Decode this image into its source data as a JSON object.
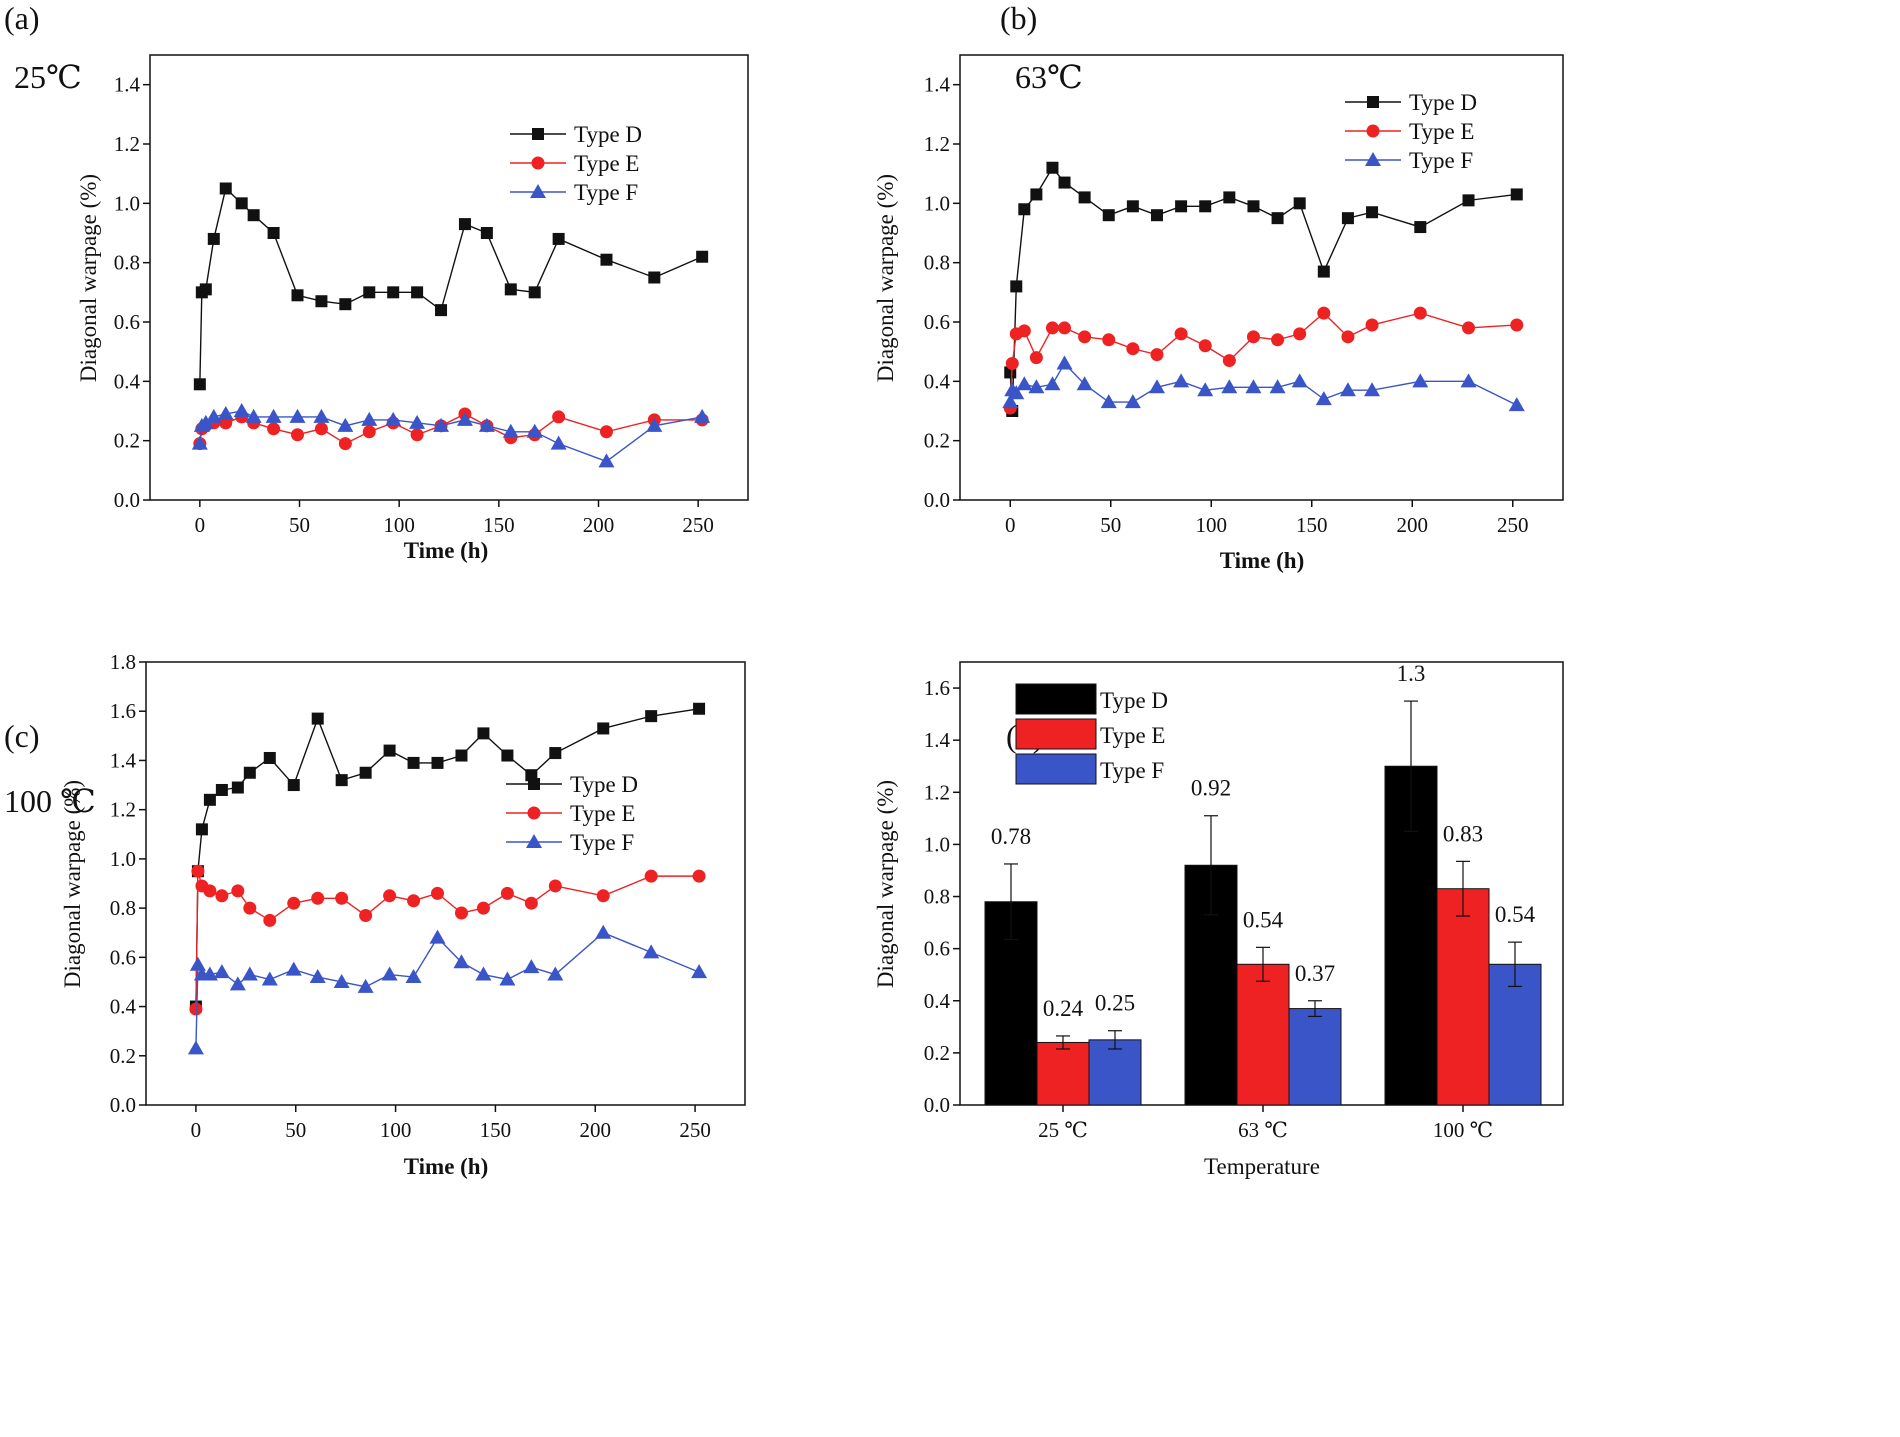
{
  "chart_data": [
    {
      "type": "line",
      "panel_label": "(a)",
      "temperature_label": "25℃",
      "xlabel": "Time (h)",
      "ylabel": "Diagonal warpage (%)",
      "xlim": [
        -25,
        275
      ],
      "ylim": [
        0,
        1.5
      ],
      "xticks": [
        0,
        50,
        100,
        150,
        200,
        250
      ],
      "yticks": [
        0.0,
        0.2,
        0.4,
        0.6,
        0.8,
        1.0,
        1.2,
        1.4
      ],
      "ytick_labels": [
        "0.0",
        "0.2",
        "0.4",
        "0.6",
        "0.8",
        "1.0",
        "1.2",
        "1.4"
      ],
      "legend_position": "top-right",
      "series": [
        {
          "name": "Type D",
          "color": "#111111",
          "marker": "square",
          "x": [
            0,
            1,
            3,
            7,
            13,
            21,
            27,
            37,
            49,
            61,
            73,
            85,
            97,
            109,
            121,
            133,
            144,
            156,
            168,
            180,
            204,
            228,
            252
          ],
          "y": [
            0.39,
            0.7,
            0.71,
            0.88,
            1.05,
            1.0,
            0.96,
            0.9,
            0.69,
            0.67,
            0.66,
            0.7,
            0.7,
            0.7,
            0.64,
            0.93,
            0.9,
            0.71,
            0.7,
            0.88,
            0.81,
            0.75,
            0.82
          ]
        },
        {
          "name": "Type E",
          "color": "#ee2222",
          "marker": "circle",
          "x": [
            0,
            1,
            3,
            7,
            13,
            21,
            27,
            37,
            49,
            61,
            73,
            85,
            97,
            109,
            121,
            133,
            144,
            156,
            168,
            180,
            204,
            228,
            252
          ],
          "y": [
            0.19,
            0.24,
            0.25,
            0.26,
            0.26,
            0.28,
            0.26,
            0.24,
            0.22,
            0.24,
            0.19,
            0.23,
            0.26,
            0.22,
            0.25,
            0.29,
            0.25,
            0.21,
            0.22,
            0.28,
            0.23,
            0.27,
            0.27
          ]
        },
        {
          "name": "Type F",
          "color": "#3a55c8",
          "marker": "triangle",
          "x": [
            0,
            1,
            3,
            7,
            13,
            21,
            27,
            37,
            49,
            61,
            73,
            85,
            97,
            109,
            121,
            133,
            144,
            156,
            168,
            180,
            204,
            228,
            252
          ],
          "y": [
            0.19,
            0.25,
            0.26,
            0.28,
            0.29,
            0.3,
            0.28,
            0.28,
            0.28,
            0.28,
            0.25,
            0.27,
            0.27,
            0.26,
            0.25,
            0.27,
            0.25,
            0.23,
            0.23,
            0.19,
            0.13,
            0.25,
            0.28
          ]
        }
      ]
    },
    {
      "type": "line",
      "panel_label": "(b)",
      "temperature_label": "63℃",
      "xlabel": "Time (h)",
      "ylabel": "Diagonal warpage (%)",
      "xlim": [
        -25,
        275
      ],
      "ylim": [
        0,
        1.5
      ],
      "xticks": [
        0,
        50,
        100,
        150,
        200,
        250
      ],
      "yticks": [
        0.0,
        0.2,
        0.4,
        0.6,
        0.8,
        1.0,
        1.2,
        1.4
      ],
      "ytick_labels": [
        "0.0",
        "0.2",
        "0.4",
        "0.6",
        "0.8",
        "1.0",
        "1.2",
        "1.4"
      ],
      "legend_position": "top-right",
      "series": [
        {
          "name": "Type D",
          "color": "#111111",
          "marker": "square",
          "x": [
            0,
            1,
            3,
            7,
            13,
            21,
            27,
            37,
            49,
            61,
            73,
            85,
            97,
            109,
            121,
            133,
            144,
            156,
            168,
            180,
            204,
            228,
            252
          ],
          "y": [
            0.43,
            0.3,
            0.72,
            0.98,
            1.03,
            1.12,
            1.07,
            1.02,
            0.96,
            0.99,
            0.96,
            0.99,
            0.99,
            1.02,
            0.99,
            0.95,
            1.0,
            0.77,
            0.95,
            0.97,
            0.92,
            1.01,
            1.03
          ]
        },
        {
          "name": "Type E",
          "color": "#ee2222",
          "marker": "circle",
          "x": [
            0,
            1,
            3,
            7,
            13,
            21,
            27,
            37,
            49,
            61,
            73,
            85,
            97,
            109,
            121,
            133,
            144,
            156,
            168,
            180,
            204,
            228,
            252
          ],
          "y": [
            0.31,
            0.46,
            0.56,
            0.57,
            0.48,
            0.58,
            0.58,
            0.55,
            0.54,
            0.51,
            0.49,
            0.56,
            0.52,
            0.47,
            0.55,
            0.54,
            0.56,
            0.63,
            0.55,
            0.59,
            0.63,
            0.58,
            0.59
          ]
        },
        {
          "name": "Type F",
          "color": "#3a55c8",
          "marker": "triangle",
          "x": [
            0,
            1,
            3,
            7,
            13,
            21,
            27,
            37,
            49,
            61,
            73,
            85,
            97,
            109,
            121,
            133,
            144,
            156,
            168,
            180,
            204,
            228,
            252
          ],
          "y": [
            0.33,
            0.37,
            0.36,
            0.39,
            0.38,
            0.39,
            0.46,
            0.39,
            0.33,
            0.33,
            0.38,
            0.4,
            0.37,
            0.38,
            0.38,
            0.38,
            0.4,
            0.34,
            0.37,
            0.37,
            0.4,
            0.4,
            0.32
          ]
        }
      ]
    },
    {
      "type": "line",
      "panel_label": "(c)",
      "temperature_label": "100 ℃",
      "xlabel": "Time (h)",
      "ylabel": "Diagonal warpage (%)",
      "xlim": [
        -25,
        275
      ],
      "ylim": [
        0,
        1.8
      ],
      "xticks": [
        0,
        50,
        100,
        150,
        200,
        250
      ],
      "yticks": [
        0.0,
        0.2,
        0.4,
        0.6,
        0.8,
        1.0,
        1.2,
        1.4,
        1.6,
        1.8
      ],
      "ytick_labels": [
        "0.0",
        "0.2",
        "0.4",
        "0.6",
        "0.8",
        "1.0",
        "1.2",
        "1.4",
        "1.6",
        "1.8"
      ],
      "legend_position": "middle-right",
      "series": [
        {
          "name": "Type D",
          "color": "#111111",
          "marker": "square",
          "x": [
            0,
            1,
            3,
            7,
            13,
            21,
            27,
            37,
            49,
            61,
            73,
            85,
            97,
            109,
            121,
            133,
            144,
            156,
            168,
            180,
            204,
            228,
            252
          ],
          "y": [
            0.4,
            0.95,
            1.12,
            1.24,
            1.28,
            1.29,
            1.35,
            1.41,
            1.3,
            1.57,
            1.32,
            1.35,
            1.44,
            1.39,
            1.39,
            1.42,
            1.51,
            1.42,
            1.34,
            1.43,
            1.53,
            1.58,
            1.61
          ]
        },
        {
          "name": "Type E",
          "color": "#ee2222",
          "marker": "circle",
          "x": [
            0,
            1,
            3,
            7,
            13,
            21,
            27,
            37,
            49,
            61,
            73,
            85,
            97,
            109,
            121,
            133,
            144,
            156,
            168,
            180,
            204,
            228,
            252
          ],
          "y": [
            0.39,
            0.95,
            0.89,
            0.87,
            0.85,
            0.87,
            0.8,
            0.75,
            0.82,
            0.84,
            0.84,
            0.77,
            0.85,
            0.83,
            0.86,
            0.78,
            0.8,
            0.86,
            0.82,
            0.89,
            0.85,
            0.93,
            0.93
          ]
        },
        {
          "name": "Type F",
          "color": "#3a55c8",
          "marker": "triangle",
          "x": [
            0,
            1,
            3,
            7,
            13,
            21,
            27,
            37,
            49,
            61,
            73,
            85,
            97,
            109,
            121,
            133,
            144,
            156,
            168,
            180,
            204,
            228,
            252
          ],
          "y": [
            0.23,
            0.57,
            0.53,
            0.53,
            0.54,
            0.49,
            0.53,
            0.51,
            0.55,
            0.52,
            0.5,
            0.48,
            0.53,
            0.52,
            0.68,
            0.58,
            0.53,
            0.51,
            0.56,
            0.53,
            0.7,
            0.62,
            0.54
          ]
        }
      ]
    },
    {
      "type": "bar",
      "panel_label": "(d)",
      "xlabel": "Temperature",
      "ylabel": "Diagonal warpage (%)",
      "ylim": [
        0,
        1.7
      ],
      "yticks": [
        0.0,
        0.2,
        0.4,
        0.6,
        0.8,
        1.0,
        1.2,
        1.4,
        1.6
      ],
      "ytick_labels": [
        "0.0",
        "0.2",
        "0.4",
        "0.6",
        "0.8",
        "1.0",
        "1.2",
        "1.4",
        "1.6"
      ],
      "categories": [
        "25 ℃",
        "63 ℃",
        "100 ℃"
      ],
      "legend_position": "top-left",
      "series": [
        {
          "name": "Type D",
          "color": "#000000",
          "values": [
            0.78,
            0.92,
            1.3
          ],
          "errors": [
            0.145,
            0.19,
            0.25
          ],
          "labels": [
            "0.78",
            "0.92",
            "1.3"
          ]
        },
        {
          "name": "Type E",
          "color": "#ee2222",
          "values": [
            0.24,
            0.54,
            0.83
          ],
          "errors": [
            0.025,
            0.065,
            0.105
          ],
          "labels": [
            "0.24",
            "0.54",
            "0.83"
          ]
        },
        {
          "name": "Type F",
          "color": "#3a55c8",
          "values": [
            0.25,
            0.37,
            0.54
          ],
          "errors": [
            0.035,
            0.03,
            0.085
          ],
          "labels": [
            "0.25",
            "0.37",
            "0.54"
          ]
        }
      ]
    }
  ]
}
